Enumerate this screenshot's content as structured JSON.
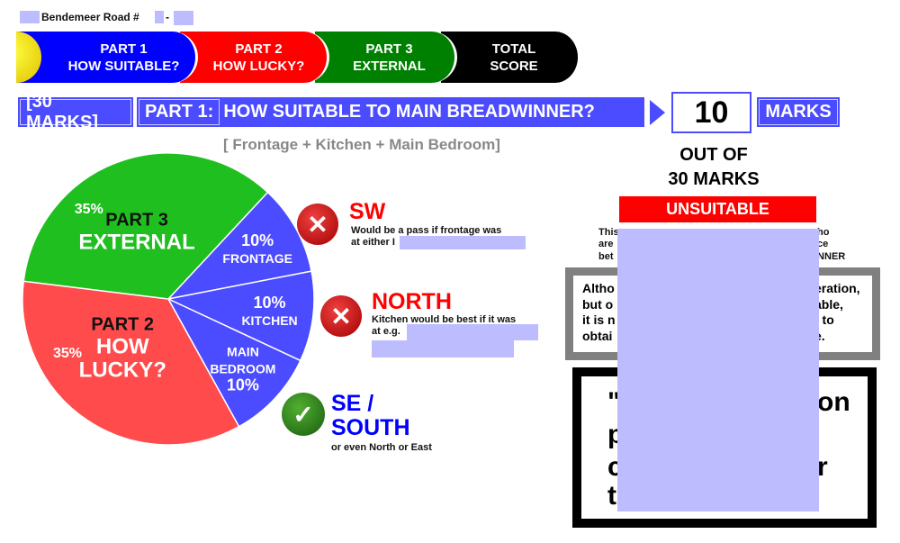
{
  "header": {
    "address": "Bendemeer Road #",
    "address_sep": "-"
  },
  "nav": [
    {
      "line1": "PART 1",
      "line2": "HOW SUITABLE?",
      "color": "#0000ff"
    },
    {
      "line1": "PART 2",
      "line2": "HOW LUCKY?",
      "color": "#ff0000"
    },
    {
      "line1": "PART 3",
      "line2": "EXTERNAL",
      "color": "#008000"
    },
    {
      "line1": "TOTAL",
      "line2": "SCORE",
      "color": "#000000"
    }
  ],
  "title": {
    "marks_total": "[30 MARKS]",
    "part": "PART 1:",
    "question": "HOW SUITABLE TO MAIN BREADWINNER?",
    "subtitle": "[ Frontage + Kitchen + Main Bedroom]"
  },
  "score": {
    "value": "10",
    "unit": "MARKS",
    "out_of_1": "OUT OF",
    "out_of_2": "30 MARKS",
    "verdict": "UNSUITABLE",
    "verdict_color": "#ff0000"
  },
  "chart_data": {
    "type": "pie",
    "slices": [
      {
        "label": "FRONTAGE",
        "value": 10,
        "display": "10%",
        "color": "#4b4bff"
      },
      {
        "label": "KITCHEN",
        "value": 10,
        "display": "10%",
        "color": "#4b4bff"
      },
      {
        "label": "MAIN BEDROOM",
        "label_lines": [
          "MAIN",
          "BEDROOM"
        ],
        "value": 10,
        "display": "10%",
        "color": "#4b4bff"
      },
      {
        "label": "PART 2 HOW LUCKY?",
        "label_lines": [
          "PART 2",
          "HOW",
          "LUCKY?"
        ],
        "value": 35,
        "display": "35%",
        "color": "#ff4b4b"
      },
      {
        "label": "PART 3 EXTERNAL",
        "label_lines": [
          "PART 3",
          "EXTERNAL"
        ],
        "value": 35,
        "display": "35%",
        "color": "#1fbf1f"
      }
    ]
  },
  "findings": [
    {
      "direction": "SW",
      "status": "fail",
      "note_1": "Would be a pass if frontage was",
      "note_2": "at either I"
    },
    {
      "direction": "NORTH",
      "status": "fail",
      "note_1": "Kitchen would be best if it was",
      "note_2": "at e.g."
    },
    {
      "direction_1": "SE /",
      "direction_2": "SOUTH",
      "status": "pass",
      "note_1": "or even North or East"
    }
  ],
  "explanation": {
    "l1a": "This",
    "l1b": "ho",
    "l2a": "are",
    "l2b": "ce",
    "l3a": "bet",
    "l3b": "INNER"
  },
  "gray_box": {
    "l1a": "Altho",
    "l1b": "eration,",
    "l2a": "but o",
    "l2b": "able,",
    "l3a": "it is n",
    "l3b": "t to",
    "l4a": "obtai",
    "l4b": "e."
  },
  "quote_box": {
    "l1a": "\"",
    "l1b": "on",
    "l2a": "p",
    "l3a": "c",
    "l3b": "r",
    "l4a": "t"
  }
}
